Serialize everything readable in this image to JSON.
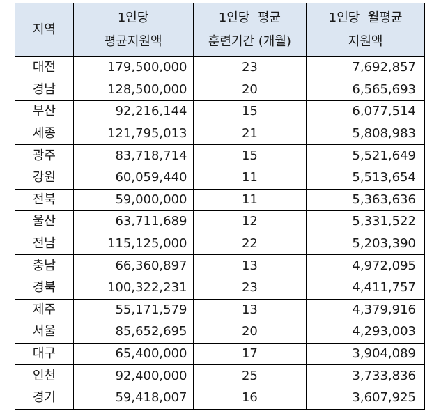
{
  "headers": {
    "region": "지역",
    "total": [
      "1인당",
      "평균지원액"
    ],
    "months": [
      "1인당  평균",
      "훈련기간 (개월)"
    ],
    "monthly": [
      "1인당  월평균",
      "지원액"
    ]
  },
  "rows": [
    {
      "region": "대전",
      "total": "179,500,000",
      "months": "23",
      "monthly": "7,692,857"
    },
    {
      "region": "경남",
      "total": "128,500,000",
      "months": "20",
      "monthly": "6,565,693"
    },
    {
      "region": "부산",
      "total": "92,216,144",
      "months": "15",
      "monthly": "6,077,514"
    },
    {
      "region": "세종",
      "total": "121,795,013",
      "months": "21",
      "monthly": "5,808,983"
    },
    {
      "region": "광주",
      "total": "83,718,714",
      "months": "15",
      "monthly": "5,521,649"
    },
    {
      "region": "강원",
      "total": "60,059,440",
      "months": "11",
      "monthly": "5,513,654"
    },
    {
      "region": "전북",
      "total": "59,000,000",
      "months": "11",
      "monthly": "5,363,636"
    },
    {
      "region": "울산",
      "total": "63,711,689",
      "months": "12",
      "monthly": "5,331,522"
    },
    {
      "region": "전남",
      "total": "115,125,000",
      "months": "22",
      "monthly": "5,203,390"
    },
    {
      "region": "충남",
      "total": "66,360,897",
      "months": "13",
      "monthly": "4,972,095"
    },
    {
      "region": "경북",
      "total": "100,322,231",
      "months": "23",
      "monthly": "4,411,757"
    },
    {
      "region": "제주",
      "total": "55,171,579",
      "months": "13",
      "monthly": "4,379,916"
    },
    {
      "region": "서울",
      "total": "85,652,695",
      "months": "20",
      "monthly": "4,293,003"
    },
    {
      "region": "대구",
      "total": "65,400,000",
      "months": "17",
      "monthly": "3,904,089"
    },
    {
      "region": "인천",
      "total": "92,400,000",
      "months": "25",
      "monthly": "3,733,836"
    },
    {
      "region": "경기",
      "total": "59,418,007",
      "months": "16",
      "monthly": "3,607,925"
    }
  ]
}
